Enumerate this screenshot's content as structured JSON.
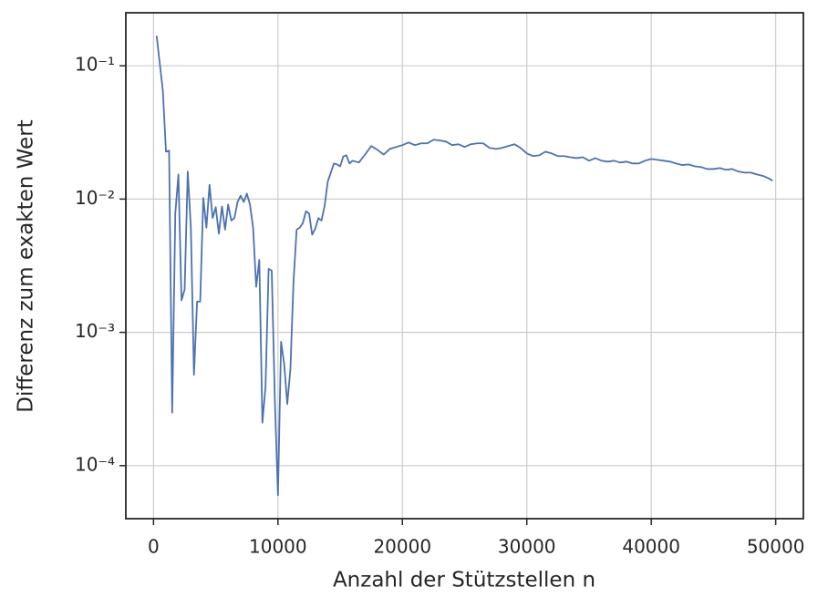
{
  "chart_data": {
    "type": "line",
    "xlabel": "Anzahl der Stützstellen n",
    "ylabel": "Differenz zum exakten Wert",
    "xlim": [
      -2225,
      52225
    ],
    "ylim": [
      4e-05,
      0.25
    ],
    "yscale": "log",
    "grid": true,
    "xticks": [
      0,
      10000,
      20000,
      30000,
      40000,
      50000
    ],
    "yticks": [
      {
        "value": 0.0001,
        "label": "10⁻⁴"
      },
      {
        "value": 0.001,
        "label": "10⁻³"
      },
      {
        "value": 0.01,
        "label": "10⁻²"
      },
      {
        "value": 0.1,
        "label": "10⁻¹"
      }
    ],
    "x": [
      250,
      750,
      1000,
      1250,
      1500,
      1750,
      2000,
      2250,
      2500,
      2750,
      3000,
      3250,
      3500,
      3750,
      4000,
      4250,
      4500,
      4750,
      5000,
      5250,
      5500,
      5750,
      6000,
      6250,
      6500,
      6750,
      7000,
      7250,
      7500,
      7750,
      8000,
      8250,
      8500,
      8750,
      9000,
      9250,
      9500,
      9750,
      10000,
      10250,
      10500,
      10750,
      11000,
      11250,
      11500,
      11750,
      12000,
      12250,
      12500,
      12750,
      13000,
      13250,
      13500,
      13750,
      14000,
      14250,
      14500,
      14750,
      15000,
      15250,
      15500,
      15750,
      16000,
      16500,
      17000,
      17500,
      18000,
      18500,
      19000,
      19500,
      20000,
      20500,
      21000,
      21500,
      22000,
      22500,
      23000,
      23500,
      24000,
      24500,
      25000,
      25500,
      26000,
      26500,
      27000,
      27500,
      28000,
      28500,
      29000,
      29500,
      30000,
      30500,
      31000,
      31500,
      32000,
      32500,
      33000,
      33500,
      34000,
      34500,
      35000,
      35500,
      36000,
      36500,
      37000,
      37500,
      38000,
      38500,
      39000,
      39500,
      40000,
      40500,
      41000,
      41500,
      42000,
      42500,
      43000,
      43500,
      44000,
      44500,
      45000,
      45500,
      46000,
      46500,
      47000,
      47500,
      48000,
      48500,
      49000,
      49500,
      49750
    ],
    "series": [
      {
        "color": "#4c72b0",
        "values": [
          0.168,
          0.065,
          0.0227,
          0.0231,
          0.00025,
          0.0078,
          0.0153,
          0.00174,
          0.0021,
          0.0161,
          0.0061,
          0.00048,
          0.0017,
          0.0017,
          0.0102,
          0.0061,
          0.0128,
          0.0072,
          0.0087,
          0.0055,
          0.0088,
          0.0059,
          0.0091,
          0.0069,
          0.0072,
          0.0095,
          0.0106,
          0.0095,
          0.011,
          0.0091,
          0.0061,
          0.0022,
          0.0035,
          0.00021,
          0.00039,
          0.003,
          0.0029,
          0.00031,
          6e-05,
          0.00085,
          0.00058,
          0.00029,
          0.00053,
          0.0024,
          0.0059,
          0.0061,
          0.0066,
          0.0081,
          0.0078,
          0.0054,
          0.006,
          0.0072,
          0.0069,
          0.0089,
          0.0135,
          0.0158,
          0.0185,
          0.0182,
          0.0176,
          0.0209,
          0.0213,
          0.0185,
          0.0194,
          0.0188,
          0.0216,
          0.025,
          0.0234,
          0.0216,
          0.0238,
          0.0246,
          0.0254,
          0.0266,
          0.0254,
          0.0262,
          0.0262,
          0.0279,
          0.0275,
          0.027,
          0.0254,
          0.0258,
          0.0246,
          0.0258,
          0.0262,
          0.0262,
          0.0242,
          0.0238,
          0.0242,
          0.025,
          0.0258,
          0.0242,
          0.022,
          0.021,
          0.0213,
          0.0227,
          0.022,
          0.021,
          0.021,
          0.0206,
          0.0203,
          0.0206,
          0.0194,
          0.0203,
          0.0194,
          0.0191,
          0.0194,
          0.0188,
          0.0191,
          0.0185,
          0.0185,
          0.0194,
          0.02,
          0.0197,
          0.0194,
          0.0191,
          0.0185,
          0.018,
          0.0182,
          0.0176,
          0.0174,
          0.0168,
          0.0168,
          0.0171,
          0.0166,
          0.0168,
          0.0161,
          0.0158,
          0.0158,
          0.0153,
          0.0149,
          0.0142,
          0.0137
        ]
      }
    ]
  }
}
